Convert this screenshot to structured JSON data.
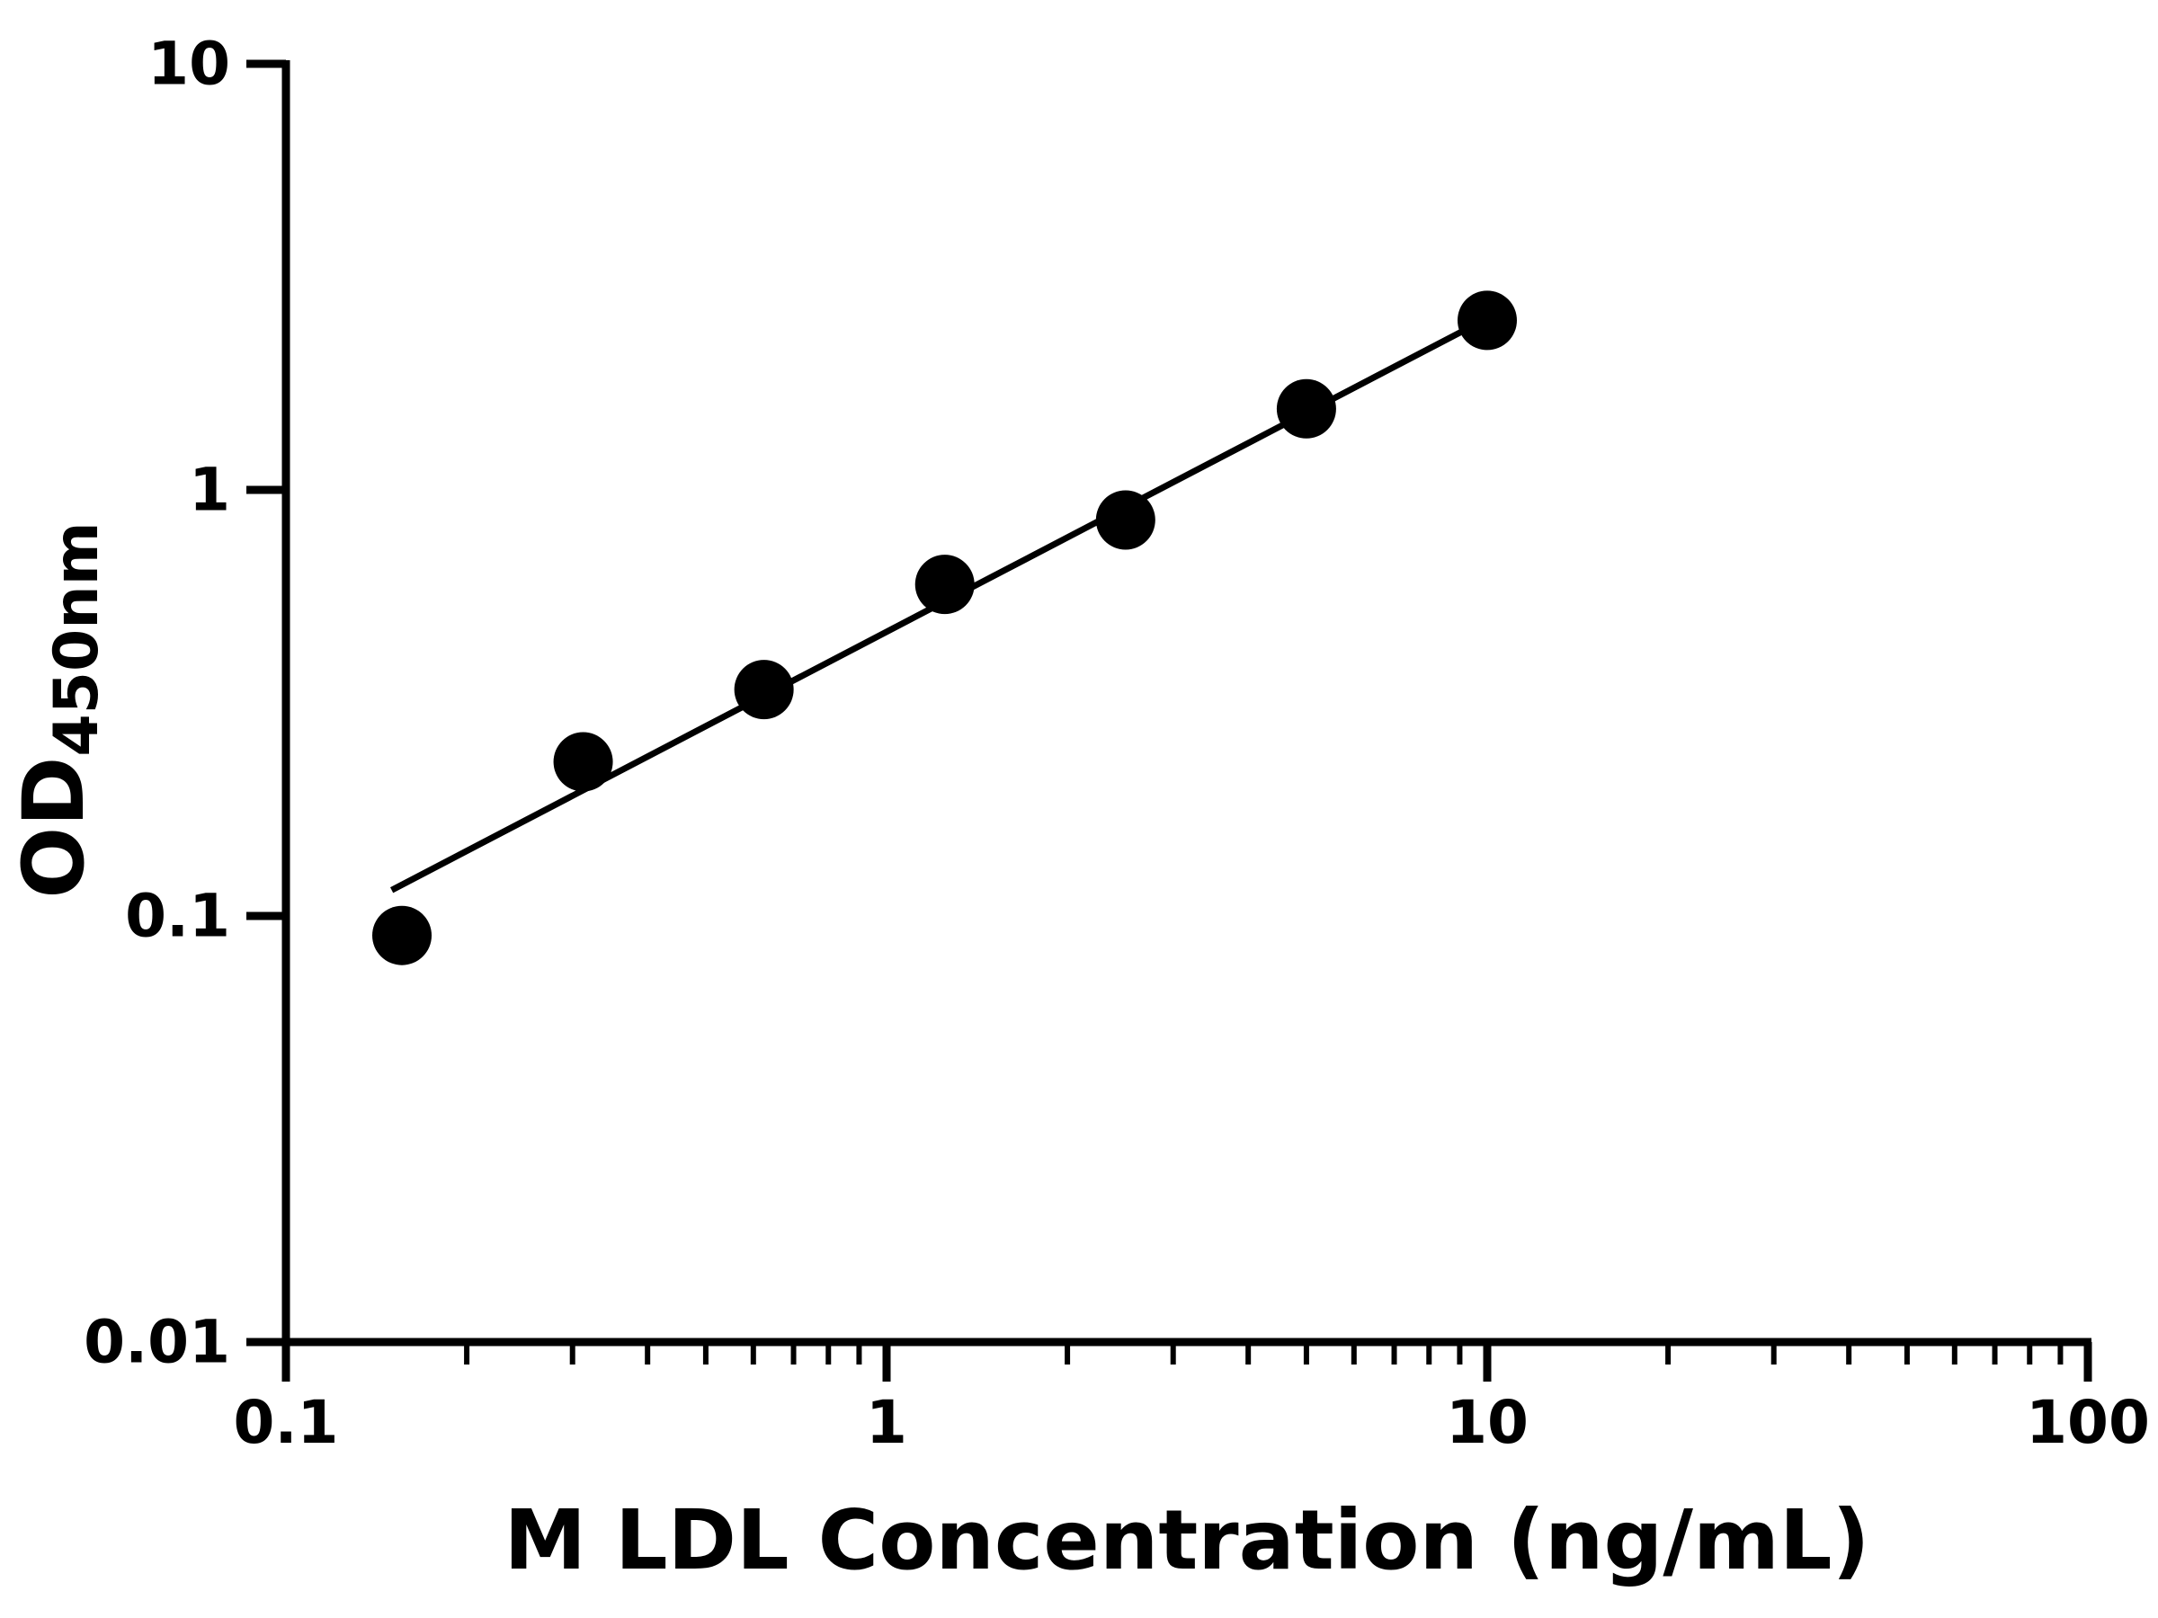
{
  "chart_data": {
    "type": "scatter",
    "title": "",
    "xlabel": "M LDL Concentration (ng/mL)",
    "ylabel_main": "OD",
    "ylabel_sub": "450nm",
    "x_scale": "log",
    "y_scale": "log",
    "xlim": [
      0.1,
      100
    ],
    "ylim": [
      0.01,
      10
    ],
    "grid": false,
    "legend": null,
    "background_color": "#ffffff",
    "axis_color": "#000000",
    "marker_color": "#000000",
    "line_color": "#000000",
    "x_ticks": [
      {
        "value": 0.1,
        "label": "0.1"
      },
      {
        "value": 1,
        "label": "1"
      },
      {
        "value": 10,
        "label": "10"
      },
      {
        "value": 100,
        "label": "100"
      }
    ],
    "y_ticks": [
      {
        "value": 0.01,
        "label": "0.01"
      },
      {
        "value": 0.1,
        "label": "0.1"
      },
      {
        "value": 1,
        "label": "1"
      },
      {
        "value": 10,
        "label": "10"
      }
    ],
    "points": [
      {
        "x": 0.156,
        "y": 0.09
      },
      {
        "x": 0.3125,
        "y": 0.23
      },
      {
        "x": 0.625,
        "y": 0.34
      },
      {
        "x": 1.25,
        "y": 0.6
      },
      {
        "x": 2.5,
        "y": 0.85
      },
      {
        "x": 5,
        "y": 1.55
      },
      {
        "x": 10,
        "y": 2.5
      }
    ],
    "trend_line": {
      "x1": 0.15,
      "y1": 0.115,
      "x2": 10.5,
      "y2": 2.62
    }
  }
}
